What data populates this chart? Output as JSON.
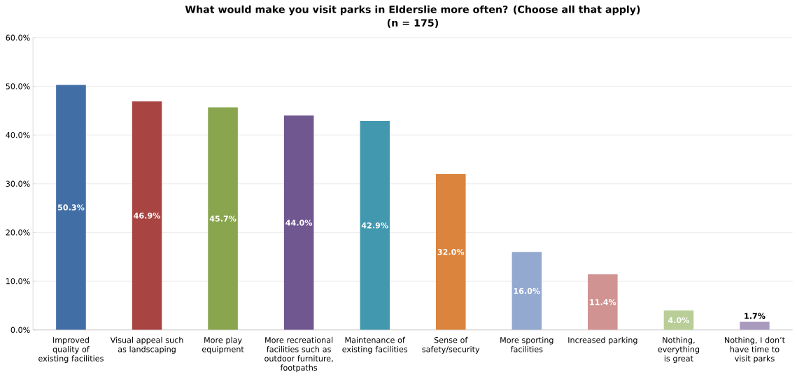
{
  "chart_data": {
    "type": "bar",
    "title": "What would make you visit parks in Elderslie more often? (Choose all that apply)",
    "subtitle": "(n = 175)",
    "categories": [
      "Improved quality of existing facilities",
      "Visual appeal such as landscaping",
      "More play equipment",
      "More recreational facilities such as outdoor furniture, footpaths",
      "Maintenance of existing facilities",
      "Sense of safety/security",
      "More sporting facilities",
      "Increased parking",
      "Nothing, everything is great",
      "Nothing, I don’t have time to visit parks"
    ],
    "values": [
      50.3,
      46.9,
      45.7,
      44.0,
      42.9,
      32.0,
      16.0,
      11.4,
      4.0,
      1.7
    ],
    "value_labels": [
      "50.3%",
      "46.9%",
      "45.7%",
      "44.0%",
      "42.9%",
      "32.0%",
      "16.0%",
      "11.4%",
      "4.0%",
      "1.7%"
    ],
    "colors": [
      "#426ea6",
      "#a84442",
      "#89a54e",
      "#70578f",
      "#4198af",
      "#db843d",
      "#93a9cf",
      "#d19392",
      "#b9cd96",
      "#a99bbd"
    ],
    "ylim": [
      0,
      60
    ],
    "yticks": [
      {
        "value": 0,
        "label": "0.0%"
      },
      {
        "value": 10,
        "label": "10.0%"
      },
      {
        "value": 20,
        "label": "20.0%"
      },
      {
        "value": 30,
        "label": "30.0%"
      },
      {
        "value": 40,
        "label": "40.0%"
      },
      {
        "value": 50,
        "label": "50.0%"
      },
      {
        "value": 60,
        "label": "60.0%"
      }
    ],
    "grid": "y"
  }
}
